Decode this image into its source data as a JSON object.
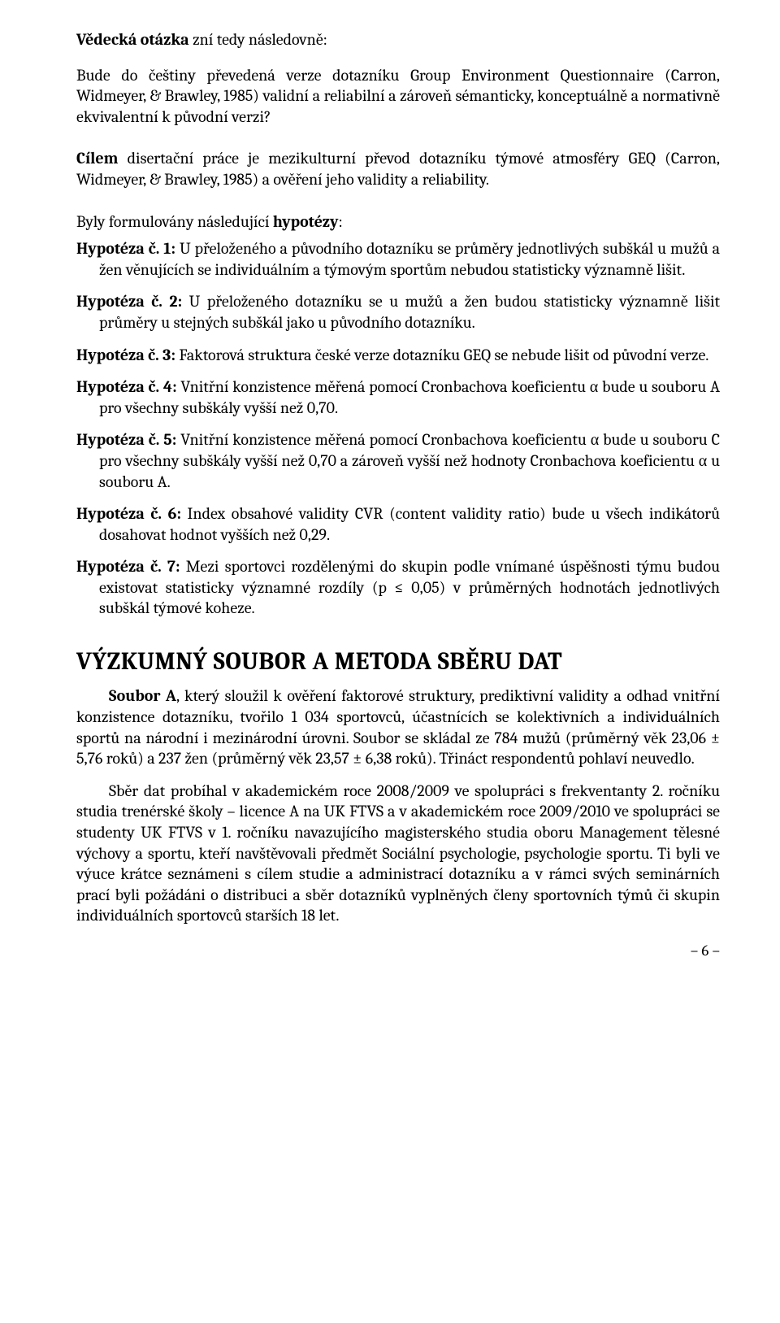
{
  "intro": {
    "lead_bold": "Vědecká otázka",
    "lead_rest": " zní tedy následovně:",
    "body": "Bude do češtiny převedená verze dotazníku Group Environment Questionnaire (Carron, Widmeyer, & Brawley, 1985) validní a reliabilní a zároveň sémanticky, konceptuálně a normativně ekvivalentní k původní verzi?"
  },
  "cil": {
    "lead_bold": "Cílem",
    "body_rest": " disertační práce je mezikulturní převod dotazníku týmové atmosféry GEQ (Carron, Widmeyer, & Brawley, 1985) a ověření jeho validity a reliability."
  },
  "hypotheses": {
    "lead_pre": "Byly formulovány následující ",
    "lead_bold": "hypotézy",
    "lead_post": ":",
    "items": [
      {
        "label": "Hypotéza č. 1:",
        "text": " U přeloženého a původního dotazníku se průměry jednotlivých subškál u mužů a žen věnujících se individuálním a týmovým sportům nebudou statisticky významně lišit."
      },
      {
        "label": "Hypotéza č. 2:",
        "text": " U přeloženého dotazníku se u mužů a žen budou statisticky významně lišit průměry u stejných subškál jako u původního dotazníku."
      },
      {
        "label": "Hypotéza č. 3:",
        "text": " Faktorová struktura české verze dotazníku GEQ se nebude lišit od původní verze."
      },
      {
        "label": "Hypotéza č. 4:",
        "text": " Vnitřní konzistence měřená pomocí Cronbachova koeficientu α bude u souboru A pro všechny subškály vyšší než 0,70."
      },
      {
        "label": "Hypotéza č. 5:",
        "text": " Vnitřní konzistence měřená pomocí Cronbachova koeficientu α bude u souboru C pro všechny subškály vyšší než 0,70 a zároveň vyšší než hodnoty Cronbachova koeficientu α u souboru A."
      },
      {
        "label": "Hypotéza č. 6:",
        "text": " Index obsahové validity CVR (content validity ratio) bude u všech indikátorů dosahovat hodnot vyšších než 0,29."
      },
      {
        "label": "Hypotéza č. 7:",
        "text": " Mezi sportovci rozdělenými do skupin podle vnímané úspěšnosti týmu budou existovat statisticky významné rozdíly (p ≤ 0,05) v průměrných hodnotách jednotlivých subškál týmové koheze."
      }
    ]
  },
  "section_heading": "VÝZKUMNÝ SOUBOR A METODA SBĚRU DAT",
  "souborA": {
    "lead_bold": "Soubor A",
    "rest": ", který sloužil k ověření faktorové struktury, prediktivní validity a odhad vnitřní konzistence dotazníku, tvořilo 1 034 sportovců, účastnících se kolektivních a individuálních sportů na národní i mezinárodní úrovni. Soubor se skládal ze 784 mužů (průměrný věk 23,06 ± 5,76 roků) a 237 žen (průměrný věk 23,57 ± 6,38 roků). Třináct respondentů pohlaví neuvedlo."
  },
  "sber": "Sběr dat probíhal v akademickém roce 2008/2009 ve spolupráci s frekventanty 2. ročníku studia trenérské školy – licence A na UK FTVS a v akademickém roce 2009/2010 ve spolupráci se studenty UK FTVS v 1. ročníku navazujícího magisterského studia oboru Management tělesné výchovy a sportu, kteří navštěvovali předmět Sociální psychologie, psychologie sportu. Ti byli ve výuce krátce seznámeni s cílem studie a administrací dotazníku a v rámci svých seminárních prací byli požádáni o distribuci a sběr dotazníků vyplněných členy sportovních týmů či skupin individuálních sportovců starších 18 let.",
  "page_number": "– 6 –"
}
